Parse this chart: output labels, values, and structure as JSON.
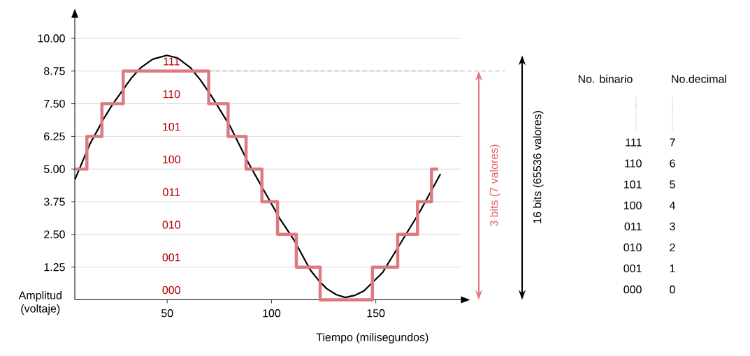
{
  "chart_data": {
    "type": "line",
    "xlabel": "Tiempo (milisegundos)",
    "ylabel": "Amplitud (voltaje)",
    "xlim": [
      5.7,
      191
    ],
    "ylim": [
      0,
      10.8
    ],
    "xticks": [
      50,
      100,
      150
    ],
    "yticks": [
      {
        "value": 1.25,
        "label": "1.25"
      },
      {
        "value": 2.5,
        "label": "2.50"
      },
      {
        "value": 3.75,
        "label": "3.75"
      },
      {
        "value": 5,
        "label": "5.00"
      },
      {
        "value": 6.25,
        "label": "6.25"
      },
      {
        "value": 7.5,
        "label": "7.50"
      },
      {
        "value": 8.75,
        "label": "8.75"
      },
      {
        "value": 10,
        "label": "10.00"
      }
    ],
    "grid": "y",
    "series": [
      {
        "color": "#000000",
        "x": [
          5.8,
          12.9,
          19.6,
          24.0,
          28.5,
          33.0,
          37.5,
          43.0,
          49.8,
          55.0,
          61.0,
          66.0,
          71.0,
          80.0,
          88.9,
          99.0,
          104.0,
          110.7,
          118.6,
          122.5,
          126.4,
          131.0,
          135.3,
          140.0,
          144.3,
          153.3,
          162.2,
          171.1,
          181.0
        ],
        "values": [
          4.61,
          5.95,
          6.93,
          7.5,
          8.0,
          8.5,
          8.89,
          9.2,
          9.35,
          9.25,
          8.89,
          8.4,
          7.82,
          6.66,
          5.24,
          3.81,
          3.1,
          2.3,
          1.14,
          0.75,
          0.43,
          0.2,
          0.09,
          0.17,
          0.34,
          1.05,
          2.21,
          3.37,
          4.81
        ]
      },
      {
        "type": "step",
        "color": "#dc7a80",
        "x": [
          5.8,
          11.5,
          18.7,
          28.9,
          69.9,
          79.2,
          87.8,
          95.4,
          102.9,
          111.9,
          123.3,
          148.4,
          160.5,
          170.0,
          176.7,
          179.9
        ],
        "values": [
          5.0,
          6.25,
          7.5,
          8.75,
          7.5,
          6.25,
          5.0,
          3.75,
          2.5,
          1.25,
          0,
          1.25,
          2.5,
          3.75,
          5.0,
          5.0
        ]
      }
    ],
    "ref_lines": [
      {
        "axis": "y",
        "value": 8.75,
        "color": "#999999",
        "line_style": "dashed"
      }
    ],
    "annotations": [
      "111",
      "110",
      "101",
      "100",
      "011",
      "010",
      "001",
      "000",
      "3 bits (7 valores)",
      "16 bits (65536 valores)",
      "No. binario",
      "No.decimal",
      "111",
      "7",
      "110",
      "6",
      "101",
      "5",
      "100",
      "4",
      "011",
      "3",
      "010",
      "2",
      "001",
      "1",
      "000",
      "0"
    ]
  }
}
